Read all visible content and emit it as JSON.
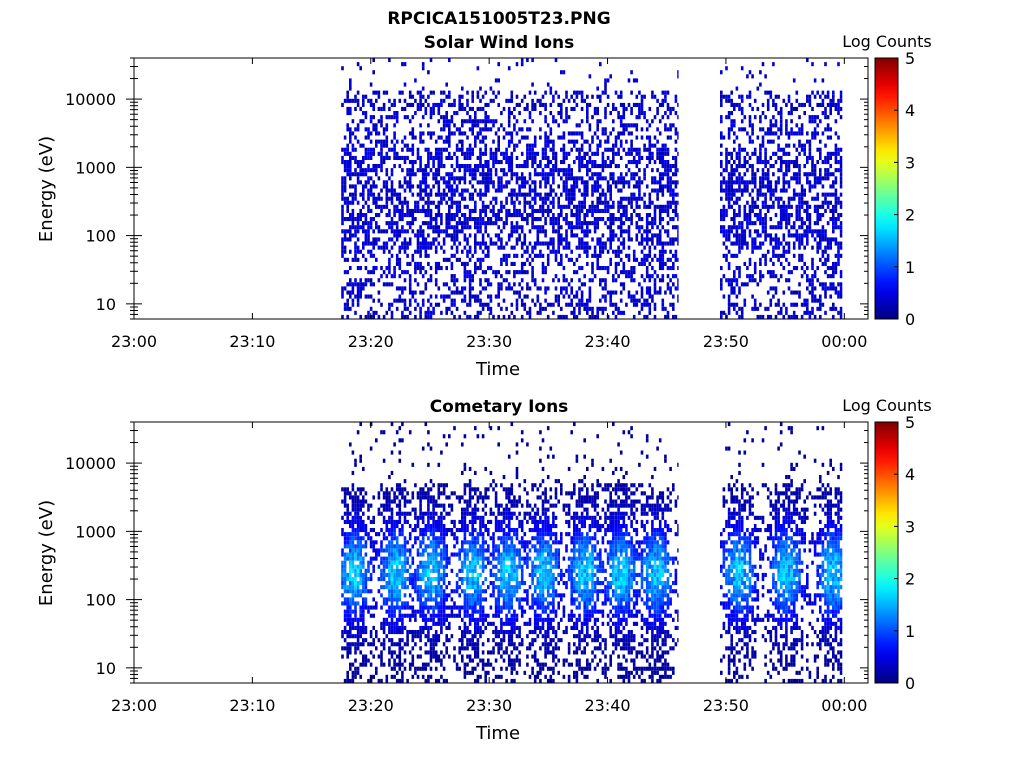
{
  "figure": {
    "title": "RPCICA151005T23.PNG"
  },
  "chart_data": [
    {
      "type": "heatmap",
      "title": "Solar Wind Ions",
      "xlabel": "Time",
      "ylabel": "Energy (eV)",
      "x_ticks": [
        "23:00",
        "23:10",
        "23:20",
        "23:30",
        "23:40",
        "23:50",
        "00:00"
      ],
      "xlim": [
        "23:00",
        "00:02"
      ],
      "y_scale": "log",
      "y_ticks": [
        "10",
        "100",
        "1000",
        "10000"
      ],
      "ylim": [
        6,
        40000
      ],
      "colorbar": {
        "label": "Log Counts",
        "ticks": [
          "0",
          "1",
          "2",
          "3",
          "4",
          "5"
        ],
        "range": [
          0,
          5
        ],
        "colormap": "jet"
      },
      "data_segments": [
        {
          "start": "23:17:30",
          "end": "23:46:00"
        },
        {
          "start": "23:49:30",
          "end": "23:59:50"
        }
      ],
      "typical_log_counts": 0.2,
      "peak_log_counts": 0.6
    },
    {
      "type": "heatmap",
      "title": "Cometary Ions",
      "xlabel": "Time",
      "ylabel": "Energy (eV)",
      "x_ticks": [
        "23:00",
        "23:10",
        "23:20",
        "23:30",
        "23:40",
        "23:50",
        "00:00"
      ],
      "xlim": [
        "23:00",
        "00:02"
      ],
      "y_scale": "log",
      "y_ticks": [
        "10",
        "100",
        "1000",
        "10000"
      ],
      "ylim": [
        6,
        40000
      ],
      "colorbar": {
        "label": "Log Counts",
        "ticks": [
          "0",
          "1",
          "2",
          "3",
          "4",
          "5"
        ],
        "range": [
          0,
          5
        ],
        "colormap": "jet"
      },
      "data_segments": [
        {
          "start": "23:17:30",
          "end": "23:46:00"
        },
        {
          "start": "23:49:30",
          "end": "23:59:50"
        }
      ],
      "band_centers": [
        "23:18:30",
        "23:22:00",
        "23:25:00",
        "23:28:30",
        "23:31:30",
        "23:34:30",
        "23:38:00",
        "23:41:00",
        "23:44:00",
        "23:51:00",
        "23:55:00",
        "23:59:00"
      ],
      "band_peak_energy_ev": 250,
      "peak_log_counts": 1.8
    }
  ]
}
